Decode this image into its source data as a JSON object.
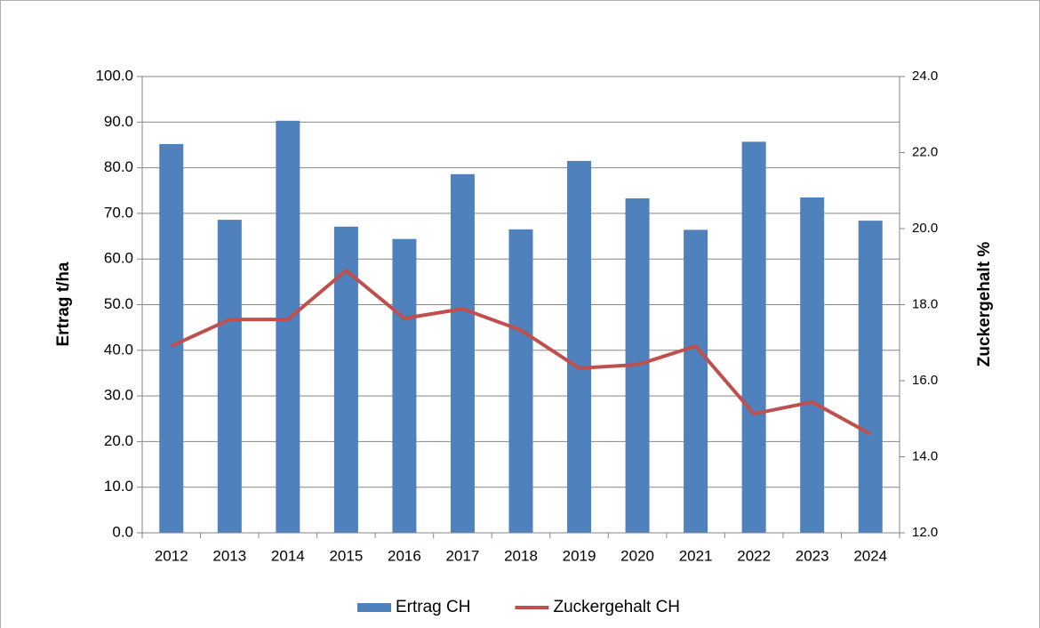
{
  "chart_data": {
    "type": "bar_line",
    "categories": [
      "2012",
      "2013",
      "2014",
      "2015",
      "2016",
      "2017",
      "2018",
      "2019",
      "2020",
      "2021",
      "2022",
      "2023",
      "2024"
    ],
    "series": [
      {
        "name": "Ertrag CH",
        "type": "bar",
        "color": "#4f81bd",
        "values": [
          85.2,
          68.6,
          90.3,
          67.1,
          64.4,
          78.6,
          66.5,
          81.5,
          73.3,
          66.4,
          85.7,
          73.5,
          68.4
        ]
      },
      {
        "name": "Zuckergehalt CH",
        "type": "line",
        "axis": "y2",
        "color": "#c0504d",
        "values": [
          16.91,
          17.61,
          17.61,
          18.9,
          17.64,
          17.89,
          17.33,
          16.33,
          16.42,
          16.91,
          15.13,
          15.44,
          14.6
        ]
      }
    ],
    "ylabel": "Ertrag t/ha",
    "y2label": "Zuckergehalt %",
    "ylim": [
      0,
      100
    ],
    "yticks": [
      {
        "value": 0,
        "label": "0.0"
      },
      {
        "value": 10,
        "label": "10.0"
      },
      {
        "value": 20,
        "label": "20.0"
      },
      {
        "value": 30,
        "label": "30.0"
      },
      {
        "value": 40,
        "label": "40.0"
      },
      {
        "value": 50,
        "label": "50.0"
      },
      {
        "value": 60,
        "label": "60.0"
      },
      {
        "value": 70,
        "label": "70.0"
      },
      {
        "value": 80,
        "label": "80.0"
      },
      {
        "value": 90,
        "label": "90.0"
      },
      {
        "value": 100,
        "label": "100.0"
      }
    ],
    "y2lim": [
      12,
      24
    ],
    "y2ticks": [
      {
        "value": 12,
        "label": "12.0"
      },
      {
        "value": 14,
        "label": "14.0"
      },
      {
        "value": 16,
        "label": "16.0"
      },
      {
        "value": 18,
        "label": "18.0"
      },
      {
        "value": 20,
        "label": "20.0"
      },
      {
        "value": 22,
        "label": "22.0"
      },
      {
        "value": 24,
        "label": "24.0"
      }
    ],
    "grid": true,
    "legend": "bottom"
  }
}
